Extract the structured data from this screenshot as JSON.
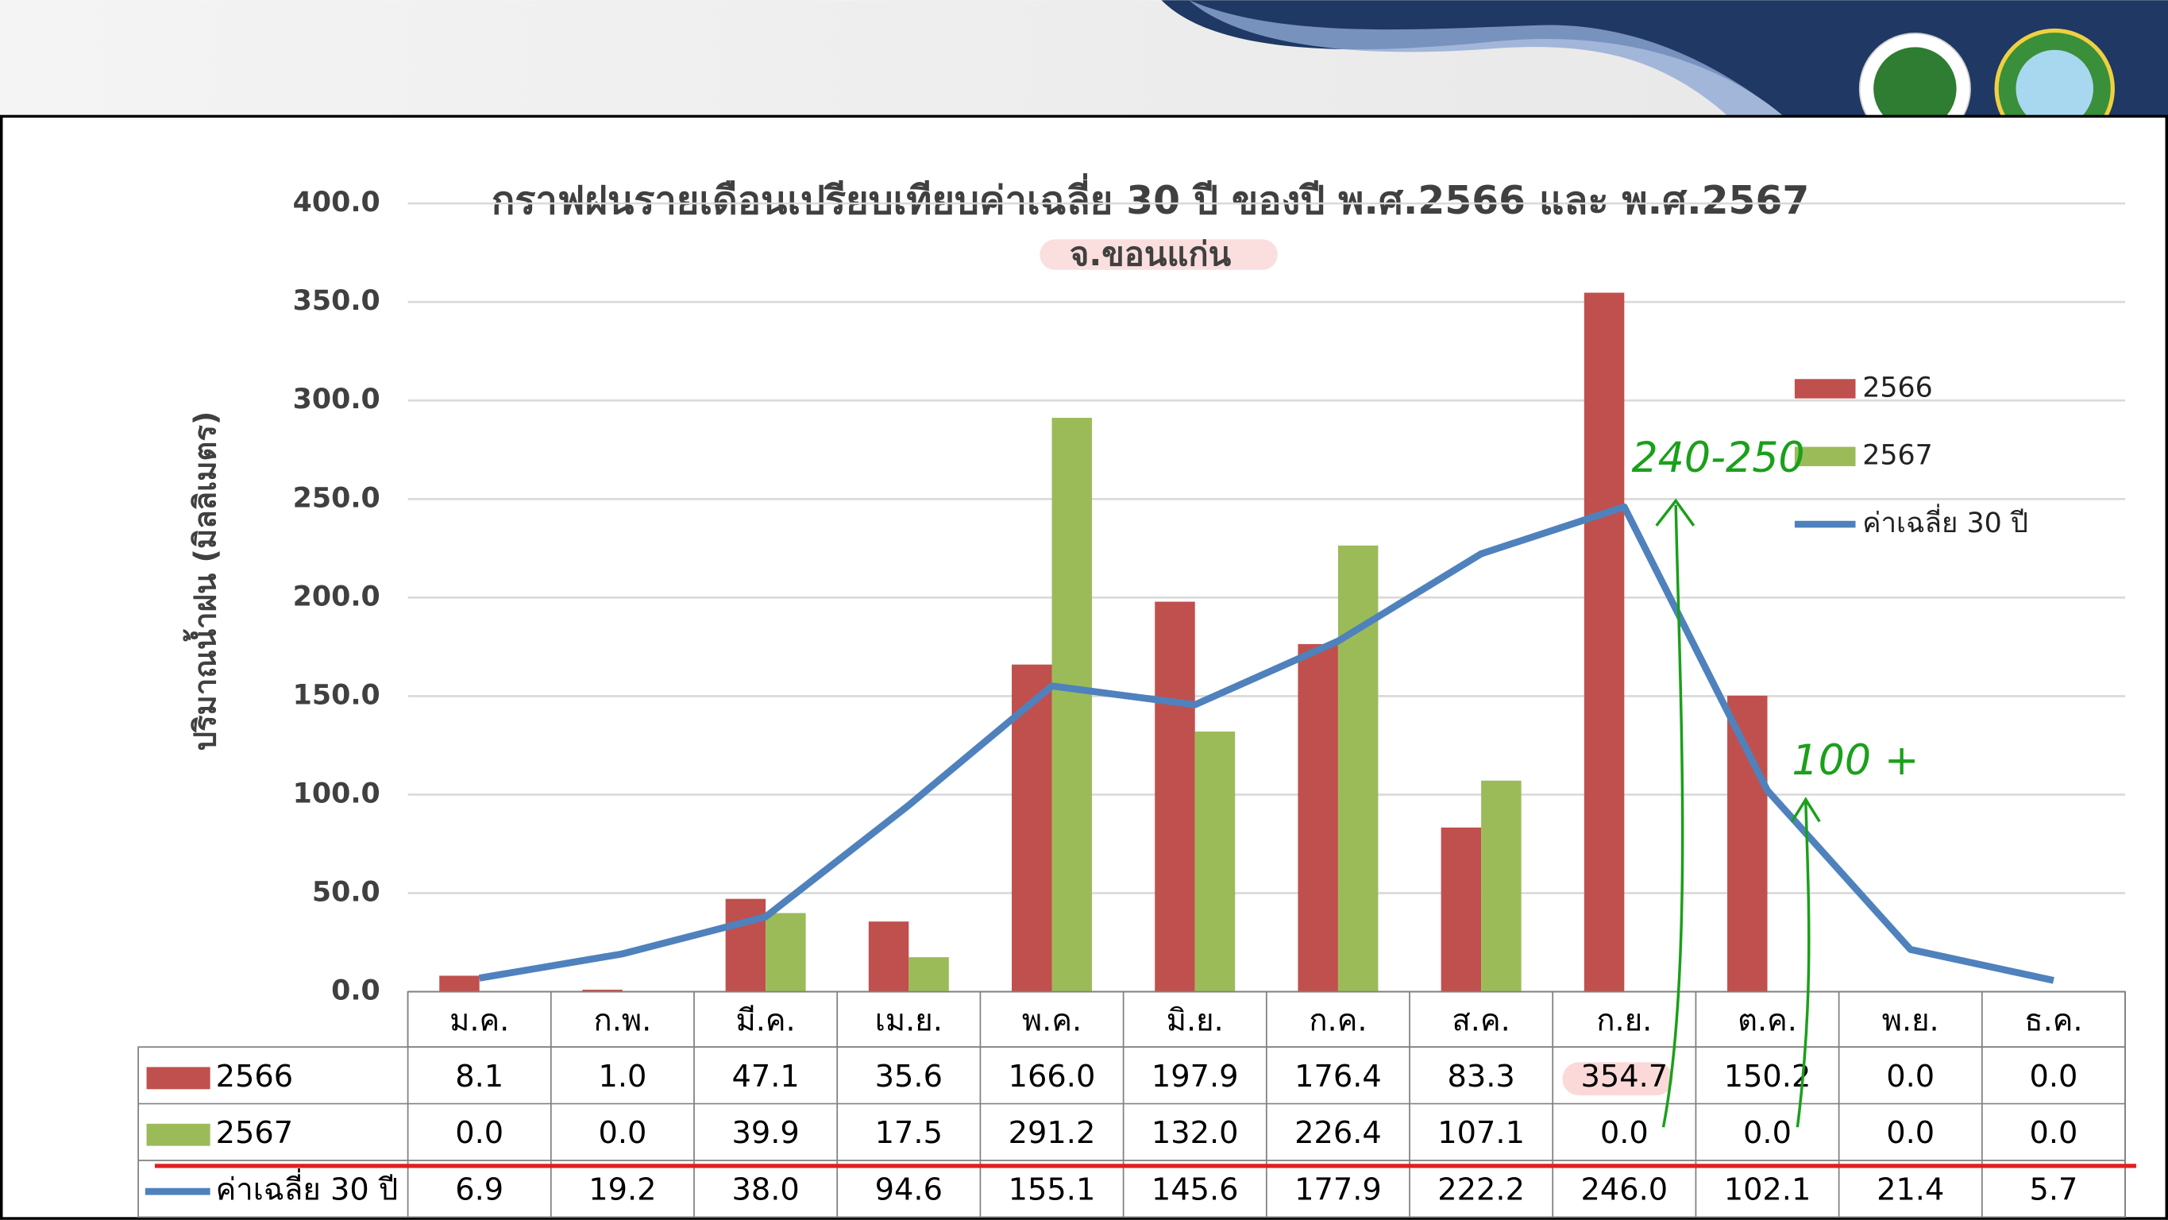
{
  "chart_data": {
    "type": "bar",
    "title": "กราฟฝนรายเดือนเปรียบเทียบค่าเฉลี่ย 30 ปี ของปี พ.ศ.2566 และ พ.ศ.2567",
    "subtitle": "จ.ขอนแก่น",
    "y_label": "ปริมาณน้ำฝน (มิลลิเมตร)",
    "categories": [
      "ม.ค.",
      "ก.พ.",
      "มี.ค.",
      "เม.ย.",
      "พ.ค.",
      "มิ.ย.",
      "ก.ค.",
      "ส.ค.",
      "ก.ย.",
      "ต.ค.",
      "พ.ย.",
      "ธ.ค."
    ],
    "series": [
      {
        "name": "2566",
        "type": "bar",
        "color": "#c0504d",
        "values": [
          8.1,
          1.0,
          47.1,
          35.6,
          166.0,
          197.9,
          176.4,
          83.3,
          354.7,
          150.2,
          0.0,
          0.0
        ],
        "value_labels": [
          "8.1",
          "1.0",
          "47.1",
          "35.6",
          "166.0",
          "197.9",
          "176.4",
          "83.3",
          "354.7",
          "150.2",
          "0.0",
          "0.0"
        ]
      },
      {
        "name": "2567",
        "type": "bar",
        "color": "#9bbb59",
        "values": [
          0.0,
          0.0,
          39.9,
          17.5,
          291.2,
          132.0,
          226.4,
          107.1,
          0.0,
          0.0,
          0.0,
          0.0
        ],
        "value_labels": [
          "0.0",
          "0.0",
          "39.9",
          "17.5",
          "291.2",
          "132.0",
          "226.4",
          "107.1",
          "0.0",
          "0.0",
          "0.0",
          "0.0"
        ]
      },
      {
        "name": "ค่าเฉลี่ย 30 ปี",
        "type": "line",
        "color": "#4f81bd",
        "values": [
          6.9,
          19.2,
          38.0,
          94.6,
          155.1,
          145.6,
          177.9,
          222.2,
          246.0,
          102.1,
          21.4,
          5.7
        ],
        "value_labels": [
          "6.9",
          "19.2",
          "38.0",
          "94.6",
          "155.1",
          "145.6",
          "177.9",
          "222.2",
          "246.0",
          "102.1",
          "21.4",
          "5.7"
        ]
      }
    ],
    "ylim": [
      0,
      400
    ],
    "yticks": [
      {
        "value": 0,
        "label": "0.0"
      },
      {
        "value": 50,
        "label": "50.0"
      },
      {
        "value": 100,
        "label": "100.0"
      },
      {
        "value": 150,
        "label": "150.0"
      },
      {
        "value": 200,
        "label": "200.0"
      },
      {
        "value": 250,
        "label": "250.0"
      },
      {
        "value": 300,
        "label": "300.0"
      },
      {
        "value": 350,
        "label": "350.0"
      },
      {
        "value": 400,
        "label": "400.0"
      }
    ],
    "grid": true,
    "legend": "right",
    "annotations": [
      {
        "text": "240-250"
      },
      {
        "text": "100 +"
      }
    ]
  }
}
